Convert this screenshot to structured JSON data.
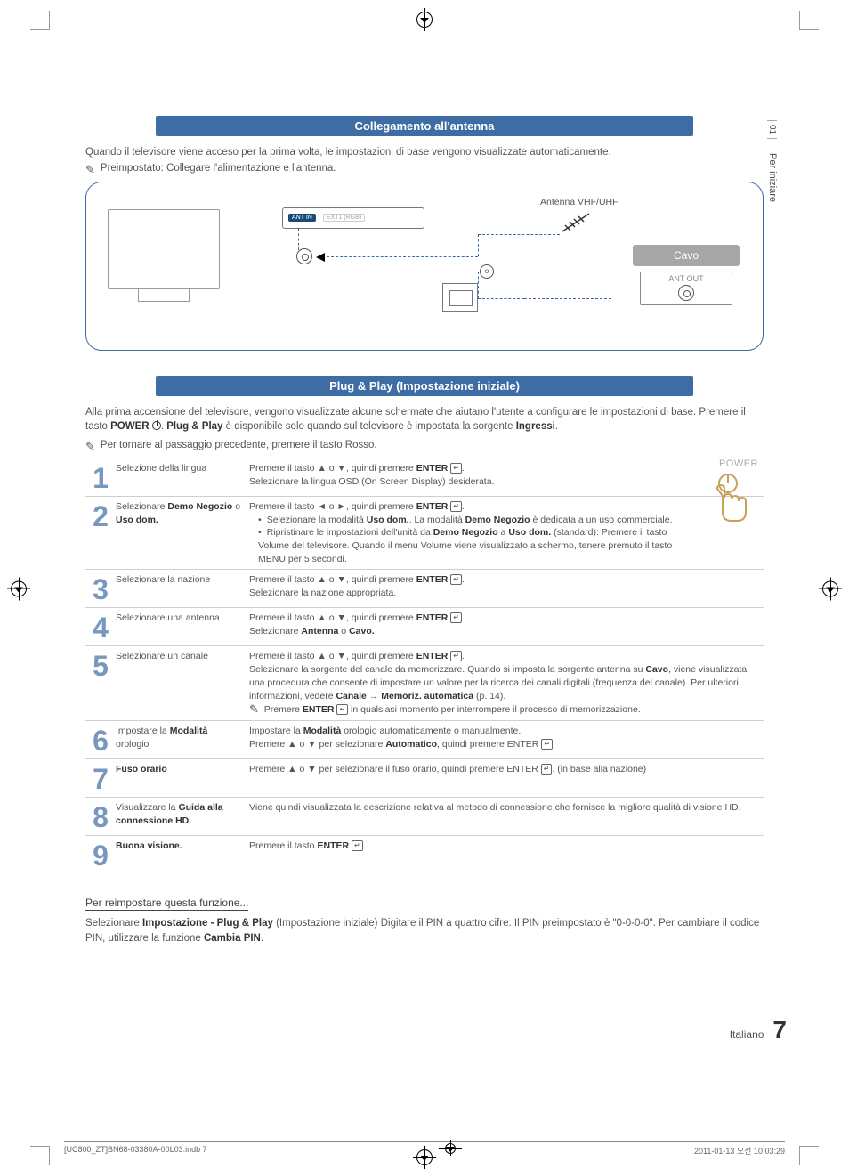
{
  "crop_marks": true,
  "side_tab": {
    "number": "01",
    "label": "Per iniziare"
  },
  "colors": {
    "blue": "#3e6ca4",
    "grey_text": "#555555",
    "step_num": "#3e6ca4",
    "cavo_bg": "#a7a7a7",
    "border_grey": "#cfcfcf"
  },
  "fonts": {
    "body_pt": 11.5,
    "header_pt": 13,
    "step_num_pt": 32
  },
  "section1": {
    "header": "Collegamento all'antenna",
    "intro": "Quando il televisore viene acceso per la prima volta, le impostazioni di base vengono visualizzate automaticamente.",
    "note": "Preimpostato: Collegare l'alimentazione e l'antenna.",
    "diagram": {
      "panel_label": "ANT IN",
      "panel_sub": "EXT1 (RGB)",
      "antenna_label": "Antenna VHF/UHF",
      "or_label": "o",
      "cavo_label": "Cavo",
      "ant_out_label": "ANT OUT"
    }
  },
  "section2": {
    "header": "Plug & Play (Impostazione iniziale)",
    "intro_1": "Alla prima accensione del televisore, vengono visualizzate alcune schermate che aiutano l'utente a configurare le impostazioni di base. Premere il tasto ",
    "intro_power": "POWER",
    "intro_2": ". ",
    "intro_pp": "Plug & Play",
    "intro_3": " è disponibile solo quando sul televisore è impostata la sorgente ",
    "intro_ingressi": "Ingressi",
    "intro_4": ".",
    "note_back": "Per tornare al passaggio precedente, premere il tasto Rosso.",
    "power_label": "POWER",
    "steps": [
      {
        "n": "1",
        "title": "Selezione della lingua",
        "body_html": "Premere il tasto ▲ o ▼, quindi premere <b>ENTER</b> <span class='enter-icon'>↵</span>.<br>Selezionare la lingua OSD (On Screen Display) desiderata."
      },
      {
        "n": "2",
        "title_html": "Selezionare <b>Demo Negozio</b> o <b>Uso dom.</b>",
        "body_html": "Premere il tasto ◄ o ►, quindi premere <b>ENTER</b> <span class='enter-icon'>↵</span>.<ul class='bul'><li>Selezionare la modalità <b>Uso dom.</b>. La modalità <b>Demo Negozio</b> è dedicata a un uso commerciale.</li><li>Ripristinare le impostazioni dell'unità da <b>Demo Negozio</b> a <b>Uso dom.</b> (standard): Premere il tasto Volume del televisore. Quando il menu Volume viene visualizzato a schermo, tenere premuto il tasto MENU per 5 secondi.</li></ul>"
      },
      {
        "n": "3",
        "title": "Selezionare la nazione",
        "body_html": "Premere il tasto ▲ o ▼, quindi premere <b>ENTER</b> <span class='enter-icon'>↵</span>.<br>Selezionare la nazione appropriata."
      },
      {
        "n": "4",
        "title": "Selezionare una antenna",
        "body_html": "Premere il tasto ▲ o ▼, quindi premere <b>ENTER</b> <span class='enter-icon'>↵</span>.<br>Selezionare <b>Antenna</b> o <b>Cavo.</b>"
      },
      {
        "n": "5",
        "title": "Selezionare un canale",
        "body_html": "Premere il tasto ▲ o ▼, quindi premere <b>ENTER</b> <span class='enter-icon'>↵</span>.<br>Selezionare la sorgente del canale da memorizzare. Quando si imposta la sorgente antenna su <b>Cavo</b>, viene visualizzata una procedura che consente di impostare un valore per la ricerca dei canali digitali (frequenza del canale). Per ulteriori informazioni, vedere <b>Canale</b> → <b>Memoriz. automatica</b> (p. 14).<br><span class='note-icon'>✎</span>&nbsp; Premere <b>ENTER</b> <span class='enter-icon'>↵</span> in qualsiasi momento per interrompere il processo di memorizzazione."
      },
      {
        "n": "6",
        "title_html": "Impostare la <b>Modalità</b> orologio",
        "body_html": "Impostare la <b>Modalità</b> orologio automaticamente o manualmente.<br>Premere ▲ o ▼ per selezionare <b>Automatico</b>, quindi premere ENTER <span class='enter-icon'>↵</span>."
      },
      {
        "n": "7",
        "title_html": "<b>Fuso orario</b>",
        "body_html": "Premere ▲ o ▼ per selezionare il fuso orario, quindi premere ENTER <span class='enter-icon'>↵</span>. (in base alla nazione)"
      },
      {
        "n": "8",
        "title_html": "Visualizzare la <b>Guida alla connessione HD.</b>",
        "body_html": "Viene quindi visualizzata la descrizione relativa al metodo di connessione che fornisce la migliore qualità di visione HD."
      },
      {
        "n": "9",
        "title_html": "<b>Buona visione.</b>",
        "body_html": "Premere il tasto <b>ENTER</b> <span class='enter-icon'>↵</span>."
      }
    ]
  },
  "reset": {
    "heading": "Per reimpostare questa funzione...",
    "body_html": "Selezionare <b>Impostazione - Plug & Play</b> (Impostazione iniziale) Digitare il PIN a quattro cifre. Il PIN preimpostato è \"0-0-0-0\". Per cambiare il codice PIN, utilizzare la funzione <b>Cambia PIN</b>."
  },
  "footer": {
    "lang": "Italiano",
    "page": "7"
  },
  "print_footer": {
    "left": "[UC800_ZT]BN68-03380A-00L03.indb   7",
    "right": "2011-01-13   오전 10:03:29"
  }
}
